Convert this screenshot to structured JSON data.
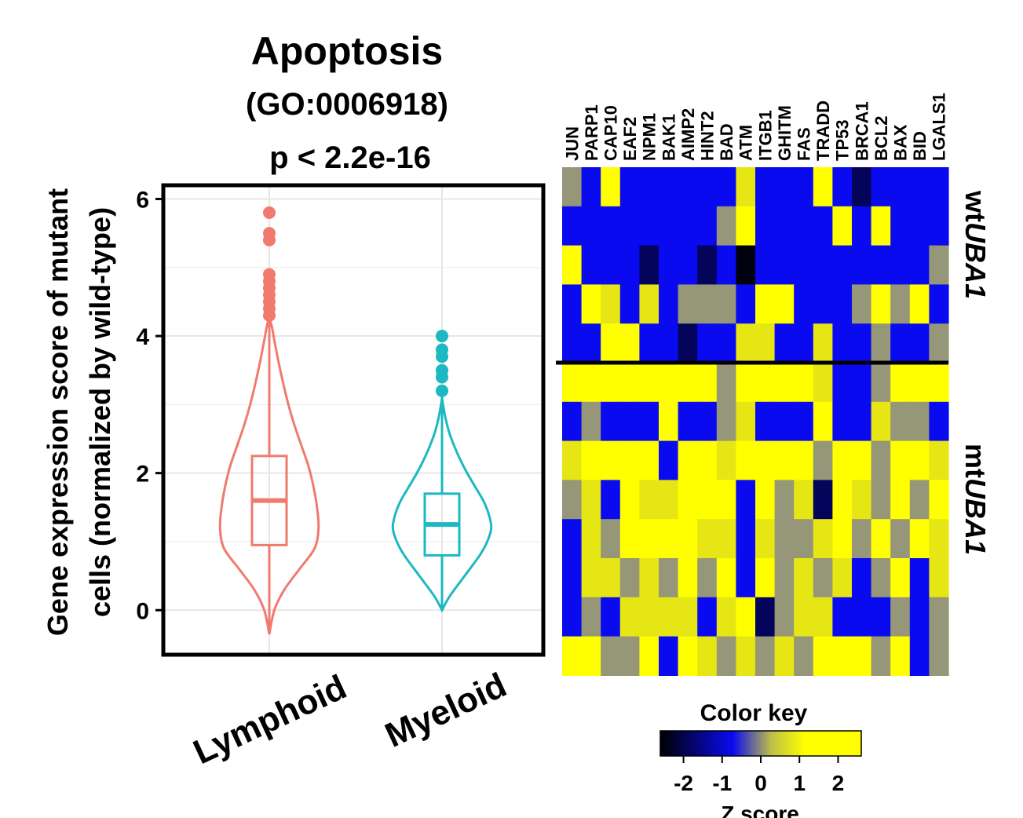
{
  "chart_data": [
    {
      "type": "violin",
      "title": "Apoptosis",
      "subtitle": "(GO:0006918)",
      "annotation": "p < 2.2e-16",
      "ylabel_line1": "Gene expression score of mutant",
      "ylabel_line2": "cells (normalized by wild-type)",
      "ylim": [
        -0.65,
        6.2
      ],
      "yticks": [
        "0",
        "2",
        "4",
        "6"
      ],
      "ytick_values": [
        0,
        2,
        4,
        6
      ],
      "grid": true,
      "categories": [
        "Lymphoid",
        "Myeloid"
      ],
      "series": [
        {
          "category": "Lymphoid",
          "color": "#F07A6E",
          "min": 0.95,
          "q1": 0.95,
          "median": 1.6,
          "q3": 2.25,
          "max": 4.2,
          "violin_y": [
            -0.35,
            0.0,
            0.3,
            0.6,
            0.9,
            1.2,
            1.5,
            1.8,
            2.1,
            2.4,
            2.7,
            3.0,
            3.3,
            3.6,
            3.9,
            4.2
          ],
          "violin_width": [
            0.0,
            0.1,
            0.3,
            0.6,
            0.9,
            0.98,
            0.95,
            0.88,
            0.78,
            0.64,
            0.5,
            0.38,
            0.28,
            0.19,
            0.11,
            0.03
          ],
          "outliers": [
            4.3,
            4.4,
            4.5,
            4.6,
            4.7,
            4.8,
            4.9,
            5.4,
            5.5,
            5.8
          ]
        },
        {
          "category": "Myeloid",
          "color": "#1DB8C2",
          "min": 0.8,
          "q1": 0.8,
          "median": 1.25,
          "q3": 1.7,
          "max": 3.1,
          "violin_y": [
            0.0,
            0.2,
            0.5,
            0.8,
            1.0,
            1.2,
            1.4,
            1.6,
            1.8,
            2.0,
            2.2,
            2.4,
            2.6,
            2.8,
            3.0,
            3.1
          ],
          "violin_width": [
            0.0,
            0.15,
            0.45,
            0.75,
            0.9,
            0.98,
            0.93,
            0.82,
            0.66,
            0.5,
            0.36,
            0.24,
            0.14,
            0.07,
            0.02,
            0.0
          ],
          "outliers": [
            3.2,
            3.4,
            3.5,
            3.7,
            3.8,
            4.0
          ]
        }
      ]
    },
    {
      "type": "heatmap",
      "columns": [
        "JUN",
        "PARP1",
        "CAP10",
        "EAF2",
        "NPM1",
        "BAK1",
        "AIMP2",
        "HINT2",
        "BAD",
        "ATM",
        "ITGB1",
        "GHITM",
        "FAS",
        "TRADD",
        "TP53",
        "BRCA1",
        "BCL2",
        "BAX",
        "BID",
        "LGALS1"
      ],
      "row_groups": [
        {
          "label_prefix": "wt",
          "label_gene": "UBA1",
          "rows": 5
        },
        {
          "label_prefix": "mt",
          "label_gene": "UBA1",
          "rows": 8
        }
      ],
      "values": [
        [
          0,
          -1,
          2,
          -1,
          -1,
          -1,
          -1,
          -1,
          -1,
          1,
          -1,
          -1,
          -1,
          2,
          -1,
          -2,
          -1,
          -1,
          -1,
          -1
        ],
        [
          -1,
          -1,
          -1,
          -1,
          -1,
          -1,
          -1,
          -1,
          0,
          2,
          -1,
          -1,
          -1,
          -1,
          2,
          -1,
          2,
          -1,
          -1,
          -1
        ],
        [
          2,
          -1,
          -1,
          -1,
          -2,
          -1,
          -1,
          -2,
          -1,
          -2.5,
          -1,
          -1,
          -1,
          -1,
          -1,
          -1,
          -1,
          -1,
          -1,
          0
        ],
        [
          -1,
          2,
          1,
          -1,
          1,
          -1,
          0,
          0,
          0,
          -1,
          2,
          2,
          -1,
          -1,
          -1,
          0,
          2,
          0,
          2,
          -1
        ],
        [
          -1,
          -1,
          2,
          2,
          -1,
          -1,
          -2,
          -1,
          -1,
          1,
          1,
          -1,
          -1,
          1,
          -1,
          -1,
          0,
          -1,
          -1,
          0
        ],
        [
          2,
          2,
          2,
          2,
          2,
          2,
          2,
          2,
          0,
          2,
          2,
          2,
          2,
          1,
          -1,
          -1,
          0,
          2,
          2,
          2
        ],
        [
          -1,
          0,
          -1,
          -1,
          -1,
          2,
          -1,
          -1,
          0,
          1,
          -1,
          -1,
          -1,
          2,
          -1,
          -1,
          1,
          0,
          0,
          -1
        ],
        [
          1,
          2,
          2,
          2,
          2,
          -1,
          2,
          2,
          1,
          2,
          2,
          2,
          2,
          0,
          2,
          2,
          0,
          2,
          2,
          1
        ],
        [
          0,
          1,
          -1,
          2,
          1,
          1,
          2,
          2,
          2,
          -1,
          2,
          0,
          1,
          -2,
          2,
          1,
          0,
          2,
          0,
          2
        ],
        [
          -1,
          1,
          0,
          2,
          2,
          2,
          2,
          1,
          1,
          -1,
          1,
          0,
          0,
          1,
          2,
          0,
          2,
          0,
          2,
          1
        ],
        [
          -1,
          1,
          1,
          0,
          1,
          0,
          2,
          0,
          2,
          -1,
          2,
          0,
          1,
          0,
          1,
          -1,
          0,
          2,
          -1,
          1
        ],
        [
          -1,
          0,
          -1,
          1,
          1,
          1,
          1,
          -1,
          1,
          2,
          -2,
          0,
          1,
          1,
          -1,
          -1,
          -1,
          0,
          -1,
          0
        ],
        [
          2,
          2,
          0,
          0,
          2,
          -1,
          2,
          1,
          0,
          1,
          0,
          1,
          0,
          2,
          2,
          2,
          0,
          2,
          -1,
          0
        ]
      ]
    },
    {
      "type": "colorbar",
      "title": "Color key",
      "xlabel": "Z score",
      "range": [
        -2.6,
        2.6
      ],
      "ticks": [
        "-2",
        "-1",
        "0",
        "1",
        "2"
      ],
      "tick_values": [
        -2,
        -1,
        0,
        1,
        2
      ],
      "colors": [
        "#000000",
        "#0A0AF0",
        "#FFFF00"
      ]
    }
  ]
}
